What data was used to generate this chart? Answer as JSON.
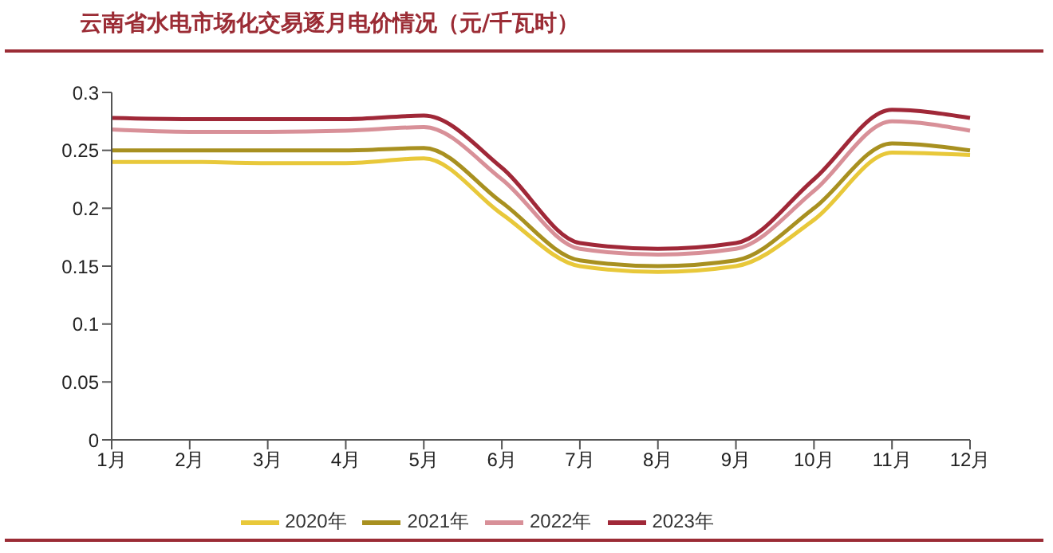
{
  "chart_data": {
    "type": "line",
    "title": "云南省水电市场化交易逐月电价情况（元/千瓦时）",
    "categories": [
      "1月",
      "2月",
      "3月",
      "4月",
      "5月",
      "6月",
      "7月",
      "8月",
      "9月",
      "10月",
      "11月",
      "12月"
    ],
    "series": [
      {
        "name": "2020年",
        "color": "#e8c83a",
        "values": [
          0.24,
          0.24,
          0.239,
          0.239,
          0.243,
          0.195,
          0.15,
          0.145,
          0.15,
          0.19,
          0.248,
          0.246
        ]
      },
      {
        "name": "2021年",
        "color": "#a89020",
        "values": [
          0.25,
          0.25,
          0.25,
          0.25,
          0.252,
          0.205,
          0.155,
          0.15,
          0.155,
          0.2,
          0.256,
          0.25
        ]
      },
      {
        "name": "2022年",
        "color": "#d89098",
        "values": [
          0.268,
          0.266,
          0.266,
          0.267,
          0.27,
          0.225,
          0.165,
          0.16,
          0.165,
          0.215,
          0.275,
          0.267
        ]
      },
      {
        "name": "2023年",
        "color": "#a02838",
        "values": [
          0.278,
          0.277,
          0.277,
          0.277,
          0.28,
          0.235,
          0.17,
          0.165,
          0.17,
          0.225,
          0.285,
          0.278
        ]
      }
    ],
    "ylim": [
      0,
      0.3
    ],
    "yticks": [
      0,
      0.05,
      0.1,
      0.15,
      0.2,
      0.25,
      0.3
    ],
    "grid": false,
    "legend": "bottom",
    "marker": "none",
    "line_style": "solid"
  }
}
